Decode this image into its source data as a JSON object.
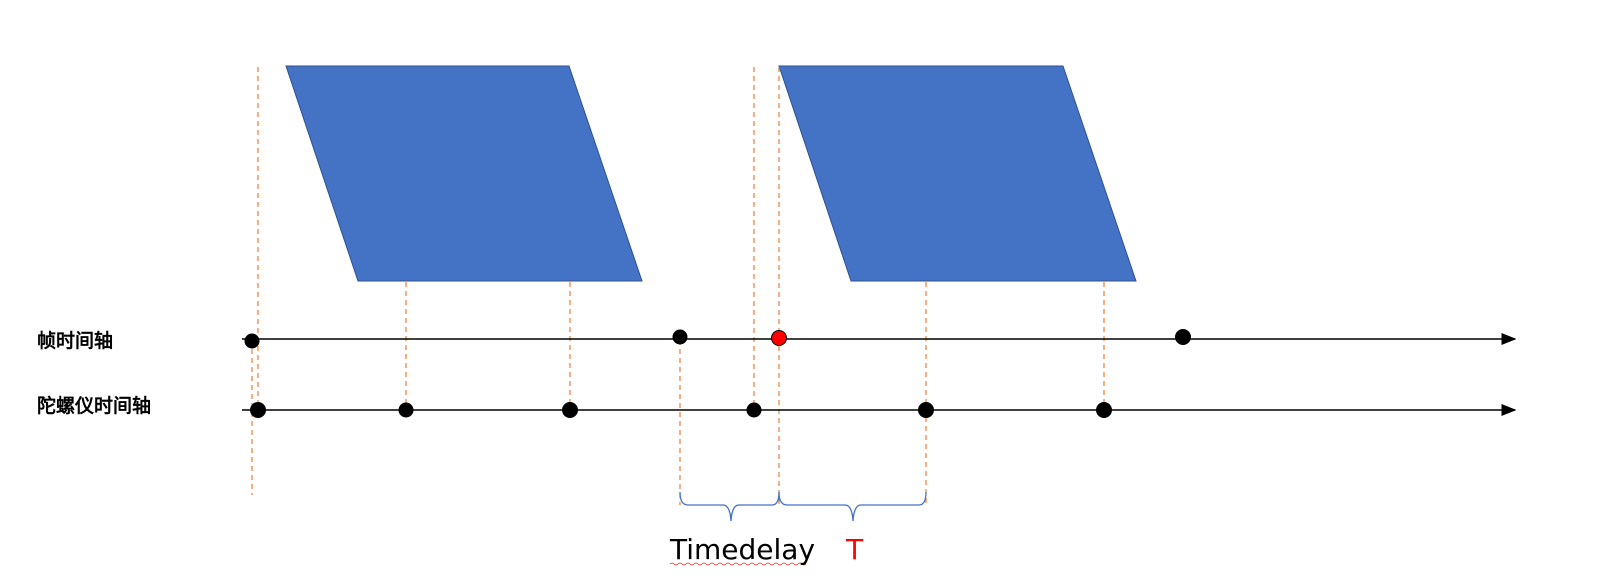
{
  "labels": {
    "frame_axis": "帧时间轴",
    "gyro_axis": "陀螺仪时间轴",
    "timedelay": "Timedelay",
    "period": "T"
  },
  "colors": {
    "frame_fill": "#4472C4",
    "frame_stroke": "#2F528F",
    "guide_line": "#ED7D31",
    "brace": "#4472C4",
    "highlight_dot": "#FF0000",
    "period_text": "#FF0000"
  }
}
